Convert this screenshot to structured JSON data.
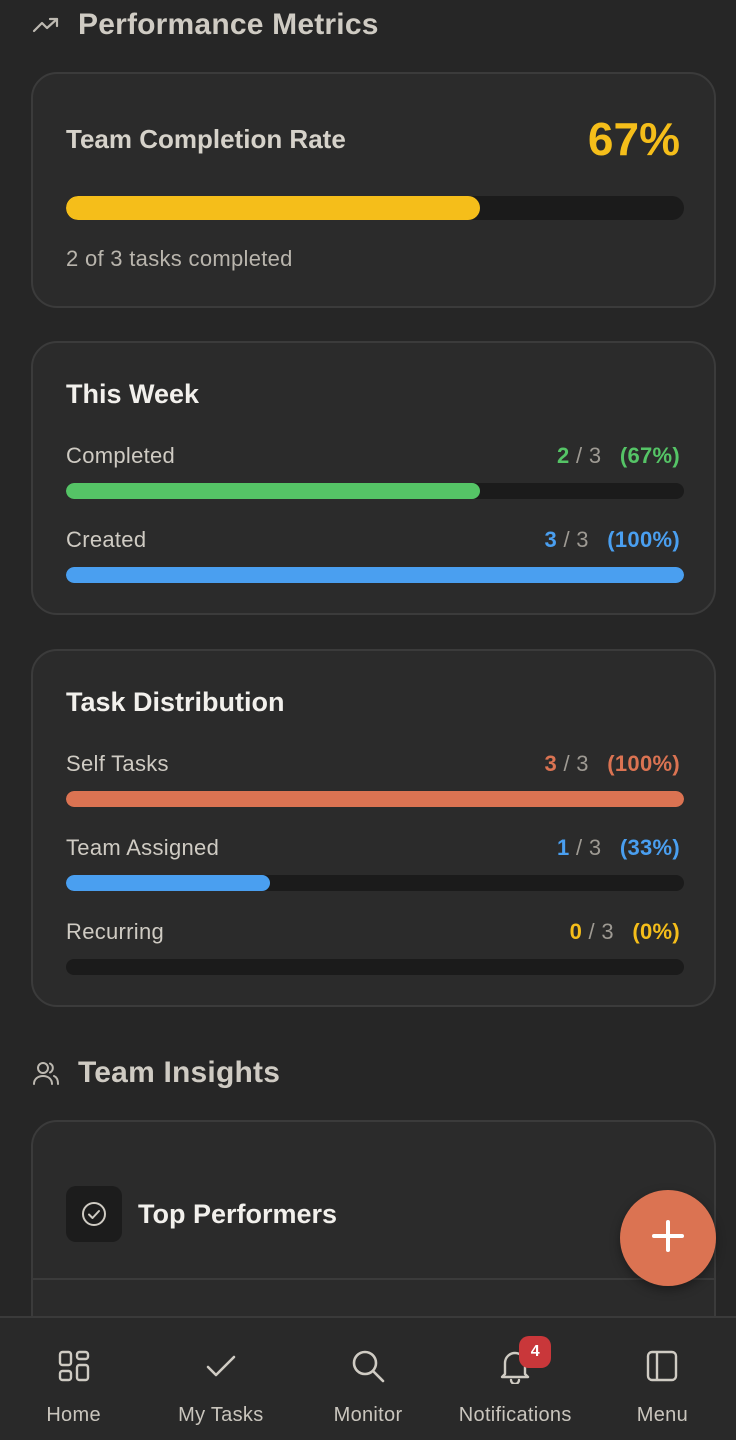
{
  "performance": {
    "section_title": "Performance Metrics",
    "completion": {
      "label": "Team Completion Rate",
      "value": "67%",
      "progress": 0.67,
      "subtitle": "2 of 3 tasks completed"
    }
  },
  "this_week": {
    "title": "This Week",
    "rows": [
      {
        "label": "Completed",
        "num": "2",
        "total": "3",
        "pct": "(67%)",
        "progress": 0.67
      },
      {
        "label": "Created",
        "num": "3",
        "total": "3",
        "pct": "(100%)",
        "progress": 1.0
      }
    ]
  },
  "distribution": {
    "title": "Task Distribution",
    "rows": [
      {
        "label": "Self Tasks",
        "num": "3",
        "total": "3",
        "pct": "(100%)",
        "progress": 1.0
      },
      {
        "label": "Team Assigned",
        "num": "1",
        "total": "3",
        "pct": "(33%)",
        "progress": 0.33
      },
      {
        "label": "Recurring",
        "num": "0",
        "total": "3",
        "pct": "(0%)",
        "progress": 0.0
      }
    ]
  },
  "insights": {
    "section_title": "Team Insights",
    "top_performers_title": "Top Performers"
  },
  "fab": {
    "icon": "plus-icon"
  },
  "nav": {
    "items": [
      {
        "label": "Home",
        "icon": "grid-icon"
      },
      {
        "label": "My Tasks",
        "icon": "check-icon"
      },
      {
        "label": "Monitor",
        "icon": "search-icon"
      },
      {
        "label": "Notifications",
        "icon": "bell-icon",
        "badge": "4"
      },
      {
        "label": "Menu",
        "icon": "sidebar-icon"
      }
    ]
  },
  "colors": {
    "accent_yellow": "#f5be1a",
    "green": "#55c466",
    "blue": "#4a9ff0",
    "orange": "#db7352",
    "badge_red": "#c9373a"
  }
}
